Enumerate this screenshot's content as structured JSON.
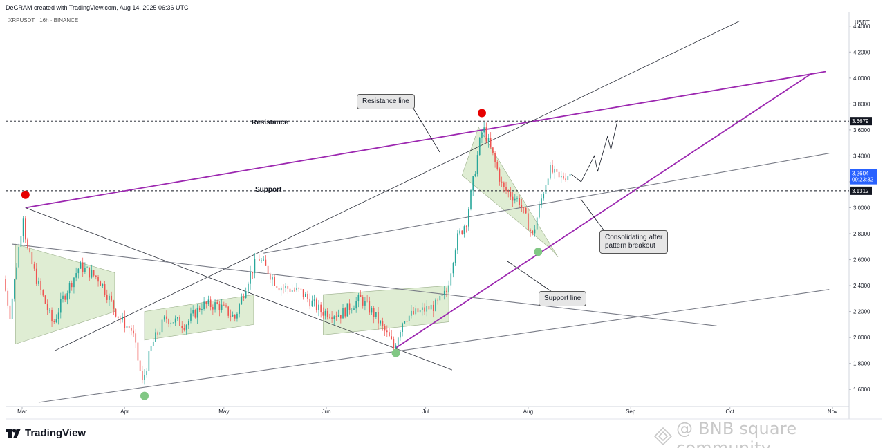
{
  "header": {
    "credit": "DeGRAM created with TradingView.com, Aug 14, 2025 06:36 UTC",
    "symbol": "XRPUSDT · 16h · BINANCE",
    "currency": "USDT"
  },
  "annotations": {
    "resistance_label": "Resistance",
    "support_label": "Support",
    "resistance_line_callout": "Resistance line",
    "support_line_callout": "Support line",
    "consolidating_callout_line1": "Consolidating after",
    "consolidating_callout_line2": "pattern breakout"
  },
  "price_tags": {
    "resistance": "3.6679",
    "current": "3.2604",
    "countdown": "09:23:32",
    "support": "3.1312"
  },
  "footer": {
    "brand": "TradingView",
    "watermark": "@ BNB square community"
  },
  "colors": {
    "up": "#26a69a",
    "down": "#ef5350",
    "channel_purple": "#9c27b0",
    "pattern_fill": "#c5deae",
    "current_tag": "#2962ff",
    "marker_red": "#e60000",
    "marker_green": "#81c784"
  },
  "chart_data": {
    "type": "candlestick",
    "title": "",
    "y_axis_ticks": [
      "4.4000",
      "4.2000",
      "4.0000",
      "3.8000",
      "3.6000",
      "3.4000",
      "3.2000",
      "3.0000",
      "2.8000",
      "2.6000",
      "2.4000",
      "2.2000",
      "2.0000",
      "1.8000",
      "1.6000"
    ],
    "y_range": [
      1.5,
      4.5
    ],
    "x_axis_ticks": [
      "Mar",
      "Apr",
      "May",
      "Jun",
      "Jul",
      "Aug",
      "Sep",
      "Oct",
      "Nov"
    ],
    "horizontal_levels": [
      {
        "label": "Resistance",
        "value": 3.6679
      },
      {
        "label": "Support",
        "value": 3.1312
      }
    ],
    "last_price": 3.2604,
    "price_path": [
      {
        "date": "2025-02-24",
        "value": 2.45
      },
      {
        "date": "2025-02-26",
        "value": 2.18
      },
      {
        "date": "2025-03-02",
        "value": 2.95
      },
      {
        "date": "2025-03-03",
        "value": 2.7
      },
      {
        "date": "2025-03-06",
        "value": 2.45
      },
      {
        "date": "2025-03-11",
        "value": 2.1
      },
      {
        "date": "2025-03-14",
        "value": 2.3
      },
      {
        "date": "2025-03-19",
        "value": 2.55
      },
      {
        "date": "2025-03-25",
        "value": 2.45
      },
      {
        "date": "2025-03-31",
        "value": 2.15
      },
      {
        "date": "2025-04-04",
        "value": 2.05
      },
      {
        "date": "2025-04-07",
        "value": 1.65
      },
      {
        "date": "2025-04-10",
        "value": 1.95
      },
      {
        "date": "2025-04-14",
        "value": 2.15
      },
      {
        "date": "2025-04-20",
        "value": 2.1
      },
      {
        "date": "2025-04-25",
        "value": 2.25
      },
      {
        "date": "2025-04-30",
        "value": 2.25
      },
      {
        "date": "2025-05-05",
        "value": 2.15
      },
      {
        "date": "2025-05-09",
        "value": 2.45
      },
      {
        "date": "2025-05-12",
        "value": 2.62
      },
      {
        "date": "2025-05-18",
        "value": 2.4
      },
      {
        "date": "2025-05-25",
        "value": 2.35
      },
      {
        "date": "2025-05-31",
        "value": 2.2
      },
      {
        "date": "2025-06-06",
        "value": 2.18
      },
      {
        "date": "2025-06-12",
        "value": 2.3
      },
      {
        "date": "2025-06-16",
        "value": 2.18
      },
      {
        "date": "2025-06-21",
        "value": 1.98
      },
      {
        "date": "2025-06-22",
        "value": 1.92
      },
      {
        "date": "2025-06-25",
        "value": 2.15
      },
      {
        "date": "2025-06-30",
        "value": 2.2
      },
      {
        "date": "2025-07-05",
        "value": 2.25
      },
      {
        "date": "2025-07-08",
        "value": 2.35
      },
      {
        "date": "2025-07-11",
        "value": 2.75
      },
      {
        "date": "2025-07-14",
        "value": 2.9
      },
      {
        "date": "2025-07-18",
        "value": 3.5
      },
      {
        "date": "2025-07-19",
        "value": 3.62
      },
      {
        "date": "2025-07-22",
        "value": 3.4
      },
      {
        "date": "2025-07-25",
        "value": 3.15
      },
      {
        "date": "2025-07-30",
        "value": 3.05
      },
      {
        "date": "2025-08-03",
        "value": 2.78
      },
      {
        "date": "2025-08-05",
        "value": 3.0
      },
      {
        "date": "2025-08-08",
        "value": 3.3
      },
      {
        "date": "2025-08-11",
        "value": 3.22
      },
      {
        "date": "2025-08-14",
        "value": 3.26
      }
    ],
    "projection": [
      {
        "date": "2025-08-14",
        "value": 3.26
      },
      {
        "date": "2025-08-17",
        "value": 3.2
      },
      {
        "date": "2025-08-21",
        "value": 3.4
      },
      {
        "date": "2025-08-22",
        "value": 3.28
      },
      {
        "date": "2025-08-25",
        "value": 3.55
      },
      {
        "date": "2025-08-26",
        "value": 3.45
      },
      {
        "date": "2025-08-28",
        "value": 3.67
      }
    ],
    "trendlines": [
      {
        "name": "purple-resistance",
        "style": "purple",
        "from": {
          "date": "2025-03-02",
          "value": 3.0
        },
        "to": {
          "date": "2025-10-30",
          "value": 4.05
        }
      },
      {
        "name": "purple-support",
        "style": "purple",
        "from": {
          "date": "2025-06-22",
          "value": 1.92
        },
        "to": {
          "date": "2025-10-26",
          "value": 4.04
        }
      },
      {
        "name": "long-ascending",
        "style": "dark",
        "from": {
          "date": "2025-03-11",
          "value": 1.9
        },
        "to": {
          "date": "2025-10-04",
          "value": 4.44
        }
      },
      {
        "name": "descending",
        "style": "dark",
        "from": {
          "date": "2025-03-02",
          "value": 3.0
        },
        "to": {
          "date": "2025-07-09",
          "value": 1.75
        }
      },
      {
        "name": "mid-ascending",
        "style": "gray",
        "from": {
          "date": "2025-05-13",
          "value": 2.65
        },
        "to": {
          "date": "2025-10-31",
          "value": 3.42
        }
      },
      {
        "name": "lower-ascending",
        "style": "gray",
        "from": {
          "date": "2025-03-06",
          "value": 1.5
        },
        "to": {
          "date": "2025-10-31",
          "value": 2.37
        }
      },
      {
        "name": "lower-descending",
        "style": "gray",
        "from": {
          "date": "2025-02-26",
          "value": 2.72
        },
        "to": {
          "date": "2025-09-27",
          "value": 2.09
        }
      }
    ],
    "markers": [
      {
        "type": "red",
        "date": "2025-03-02",
        "value": 3.1
      },
      {
        "type": "red",
        "date": "2025-07-18",
        "value": 3.73
      },
      {
        "type": "green",
        "date": "2025-04-07",
        "value": 1.55
      },
      {
        "type": "green",
        "date": "2025-06-22",
        "value": 1.88
      },
      {
        "type": "green",
        "date": "2025-08-04",
        "value": 2.66
      }
    ]
  }
}
